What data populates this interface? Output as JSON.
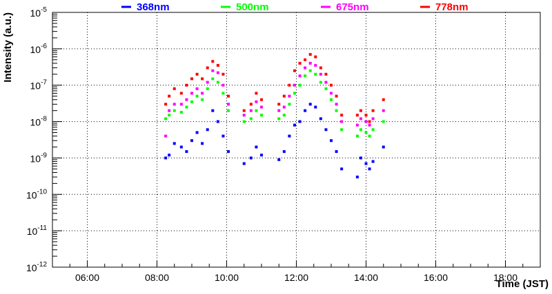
{
  "chart_data": {
    "type": "scatter",
    "title": "",
    "xlabel": "Time (JST)",
    "ylabel": "Intensity (a.u.)",
    "x_unit": "hours (JST)",
    "xlim": [
      5.0,
      19.0
    ],
    "ylim": [
      1e-12,
      1e-05
    ],
    "y_scale": "log",
    "grid": true,
    "legend_position": "top",
    "x_ticks": [
      {
        "value": 6,
        "label": "06:00"
      },
      {
        "value": 8,
        "label": "08:00"
      },
      {
        "value": 10,
        "label": "10:00"
      },
      {
        "value": 12,
        "label": "12:00"
      },
      {
        "value": 14,
        "label": "14:00"
      },
      {
        "value": 16,
        "label": "16:00"
      },
      {
        "value": 18,
        "label": "18:00"
      }
    ],
    "y_ticks": [
      {
        "exp": -12,
        "base": "10",
        "power": "-12"
      },
      {
        "exp": -11,
        "base": "10",
        "power": "-11"
      },
      {
        "exp": -10,
        "base": "10",
        "power": "-10"
      },
      {
        "exp": -9,
        "base": "10",
        "power": "-9"
      },
      {
        "exp": -8,
        "base": "10",
        "power": "-8"
      },
      {
        "exp": -7,
        "base": "10",
        "power": "-7"
      },
      {
        "exp": -6,
        "base": "10",
        "power": "-6"
      },
      {
        "exp": -5,
        "base": "10",
        "power": "-5"
      }
    ],
    "series": [
      {
        "name": "368nm",
        "color": "#0000ff",
        "x": [
          8.25,
          8.35,
          8.5,
          8.7,
          8.85,
          9.0,
          9.15,
          9.3,
          9.45,
          9.6,
          9.75,
          9.9,
          10.05,
          10.5,
          10.7,
          10.85,
          11.0,
          11.5,
          11.65,
          11.8,
          11.95,
          12.1,
          12.25,
          12.4,
          12.55,
          12.7,
          12.85,
          13.0,
          13.15,
          13.3,
          13.75,
          13.85,
          14.0,
          14.1,
          14.2,
          14.5
        ],
        "y": [
          1e-09,
          1.2e-09,
          2.5e-09,
          2e-09,
          1.5e-09,
          3e-09,
          5e-09,
          2.5e-09,
          6e-09,
          2e-08,
          1e-08,
          4e-09,
          1.5e-09,
          7e-10,
          1e-09,
          2e-09,
          1.2e-09,
          9e-10,
          1.5e-09,
          4e-09,
          8e-09,
          1e-08,
          2e-08,
          3e-08,
          2.5e-08,
          1.2e-08,
          6e-09,
          3e-09,
          1.5e-09,
          5e-10,
          3e-10,
          1e-09,
          7e-10,
          5e-10,
          8e-10,
          2e-09
        ]
      },
      {
        "name": "500nm",
        "color": "#00ff00",
        "x": [
          8.25,
          8.35,
          8.5,
          8.7,
          8.85,
          9.0,
          9.15,
          9.3,
          9.45,
          9.6,
          9.75,
          9.9,
          10.05,
          10.5,
          10.7,
          10.85,
          11.0,
          11.5,
          11.65,
          11.8,
          11.95,
          12.1,
          12.25,
          12.4,
          12.55,
          12.7,
          12.85,
          13.0,
          13.15,
          13.3,
          13.75,
          13.85,
          14.0,
          14.1,
          14.2,
          14.5
        ],
        "y": [
          1.2e-08,
          1.5e-08,
          2e-08,
          1.8e-08,
          2.5e-08,
          3.5e-08,
          5e-08,
          4e-08,
          8e-08,
          1.5e-07,
          1.2e-07,
          6e-08,
          2e-08,
          1e-08,
          1.2e-08,
          2e-08,
          1.5e-08,
          1.2e-08,
          1.5e-08,
          3e-08,
          6e-08,
          1e-07,
          1.8e-07,
          2.5e-07,
          2e-07,
          1.2e-07,
          8e-08,
          4e-08,
          2e-08,
          6e-09,
          4e-09,
          6e-09,
          5e-09,
          4e-09,
          6e-09,
          1e-08
        ]
      },
      {
        "name": "675nm",
        "color": "#ff00ff",
        "x": [
          8.25,
          8.35,
          8.5,
          8.7,
          8.85,
          9.0,
          9.15,
          9.3,
          9.45,
          9.6,
          9.75,
          9.9,
          10.05,
          10.5,
          10.7,
          10.85,
          11.0,
          11.5,
          11.65,
          11.8,
          11.95,
          12.1,
          12.25,
          12.4,
          12.55,
          12.7,
          12.85,
          13.0,
          13.15,
          13.3,
          13.75,
          13.85,
          14.0,
          14.1,
          14.2,
          14.5
        ],
        "y": [
          4e-09,
          2e-08,
          3e-08,
          3e-08,
          4e-08,
          6e-08,
          8e-08,
          6e-08,
          1.2e-07,
          2.5e-07,
          2.2e-07,
          1e-07,
          3e-08,
          1.5e-08,
          2e-08,
          3.5e-08,
          2.5e-08,
          2e-08,
          2.5e-08,
          5e-08,
          1e-07,
          1.8e-07,
          3e-07,
          4e-07,
          3.5e-07,
          2e-07,
          1.2e-07,
          6e-08,
          3e-08,
          1e-08,
          8e-09,
          1.2e-08,
          1e-08,
          8e-09,
          1.2e-08,
          2e-08
        ]
      },
      {
        "name": "778nm",
        "color": "#ff0000",
        "x": [
          8.25,
          8.35,
          8.5,
          8.7,
          8.85,
          9.0,
          9.15,
          9.3,
          9.45,
          9.6,
          9.75,
          9.9,
          10.05,
          10.5,
          10.7,
          10.85,
          11.0,
          11.5,
          11.65,
          11.8,
          11.95,
          12.1,
          12.25,
          12.4,
          12.55,
          12.7,
          12.85,
          13.0,
          13.15,
          13.3,
          13.75,
          13.85,
          14.0,
          14.1,
          14.2,
          14.5
        ],
        "y": [
          3e-08,
          5e-08,
          8e-08,
          6e-08,
          1e-07,
          1.5e-07,
          2e-07,
          1.5e-07,
          3e-07,
          4.5e-07,
          3.5e-07,
          2e-07,
          5e-08,
          2e-08,
          3e-08,
          6e-08,
          4e-08,
          3e-08,
          5e-08,
          1e-07,
          2.5e-07,
          4e-07,
          5e-07,
          7e-07,
          6e-07,
          3e-07,
          2e-07,
          1e-07,
          5e-08,
          1.5e-08,
          1.5e-08,
          2e-08,
          1.5e-08,
          1e-08,
          2e-08,
          4e-08
        ]
      }
    ]
  }
}
